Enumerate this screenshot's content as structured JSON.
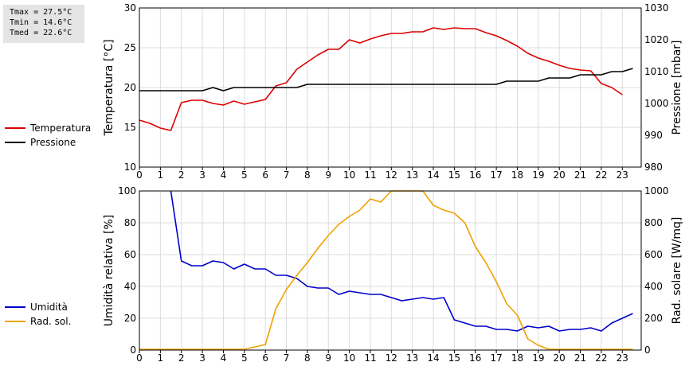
{
  "stats": {
    "tmax": "Tmax = 27.5°C",
    "tmin": "Tmin = 14.6°C",
    "tmed": "Tmed = 22.6°C"
  },
  "legend_top": [
    {
      "label": "Temperatura",
      "color": "#dd0000"
    },
    {
      "label": "Pressione",
      "color": "#000000"
    }
  ],
  "legend_bottom": [
    {
      "label": "Umidità",
      "color": "#0000cc"
    },
    {
      "label": "Rad. sol.",
      "color": "#f0a000"
    }
  ],
  "chart_data": [
    {
      "type": "line",
      "xlabel": "",
      "x_ticks": [
        0,
        1,
        2,
        3,
        4,
        5,
        6,
        7,
        8,
        9,
        10,
        11,
        12,
        13,
        14,
        15,
        16,
        17,
        18,
        19,
        20,
        21,
        22,
        23
      ],
      "xlim": [
        0,
        23.9
      ],
      "y_left": {
        "label": "Temperatura [°C]",
        "lim": [
          10,
          30
        ],
        "ticks": [
          10,
          15,
          20,
          25,
          30
        ]
      },
      "y_right": {
        "label": "Pressione [mbar]",
        "lim": [
          980,
          1030
        ],
        "ticks": [
          980,
          990,
          1000,
          1010,
          1020,
          1030
        ]
      },
      "grid": true,
      "series": [
        {
          "name": "Temperatura",
          "axis": "left",
          "color": "#dd0000",
          "x": [
            0,
            0.5,
            1,
            1.5,
            2,
            2.5,
            3,
            3.5,
            4,
            4.5,
            5,
            5.5,
            6,
            6.5,
            7,
            7.5,
            8,
            8.5,
            9,
            9.5,
            10,
            10.5,
            11,
            11.5,
            12,
            12.5,
            13,
            13.5,
            14,
            14.5,
            15,
            15.5,
            16,
            16.5,
            17,
            17.5,
            18,
            18.5,
            19,
            19.5,
            20,
            20.5,
            21,
            21.5,
            22,
            22.5,
            23,
            23.5
          ],
          "y": [
            15.9,
            15.5,
            14.9,
            14.6,
            18.1,
            18.4,
            18.4,
            18.0,
            17.8,
            18.3,
            17.9,
            18.2,
            18.5,
            20.2,
            20.6,
            22.3,
            23.2,
            24.1,
            24.8,
            24.8,
            26.0,
            25.6,
            26.1,
            26.5,
            26.8,
            26.8,
            27.0,
            27.0,
            27.5,
            27.3,
            27.5,
            27.4,
            27.4,
            26.9,
            26.5,
            25.9,
            25.2,
            24.3,
            23.7,
            23.3,
            22.8,
            22.4,
            22.2,
            22.1,
            20.5,
            20.0,
            19.1,
            null
          ]
        },
        {
          "name": "Pressione",
          "axis": "right",
          "color": "#000000",
          "x": [
            0,
            0.5,
            1,
            1.5,
            2,
            2.5,
            3,
            3.5,
            4,
            4.5,
            5,
            5.5,
            6,
            6.5,
            7,
            7.5,
            8,
            8.5,
            9,
            9.5,
            10,
            10.5,
            11,
            11.5,
            12,
            12.5,
            13,
            13.5,
            14,
            14.5,
            15,
            15.5,
            16,
            16.5,
            17,
            17.5,
            18,
            18.5,
            19,
            19.5,
            20,
            20.5,
            21,
            21.5,
            22,
            22.5,
            23,
            23.5
          ],
          "y": [
            1004,
            1004,
            1004,
            1004,
            1004,
            1004,
            1004,
            1005,
            1004,
            1005,
            1005,
            1005,
            1005,
            1005,
            1005,
            1005,
            1006,
            1006,
            1006,
            1006,
            1006,
            1006,
            1006,
            1006,
            1006,
            1006,
            1006,
            1006,
            1006,
            1006,
            1006,
            1006,
            1006,
            1006,
            1006,
            1007,
            1007,
            1007,
            1007,
            1008,
            1008,
            1008,
            1009,
            1009,
            1009,
            1010,
            1010,
            1011
          ]
        }
      ]
    },
    {
      "type": "line",
      "xlabel": "",
      "x_ticks": [
        0,
        1,
        2,
        3,
        4,
        5,
        6,
        7,
        8,
        9,
        10,
        11,
        12,
        13,
        14,
        15,
        16,
        17,
        18,
        19,
        20,
        21,
        22,
        23
      ],
      "xlim": [
        0,
        23.9
      ],
      "y_left": {
        "label": "Umidità relativa [%]",
        "lim": [
          0,
          100
        ],
        "ticks": [
          0,
          20,
          40,
          60,
          80,
          100
        ]
      },
      "y_right": {
        "label": "Rad. solare [W/mq]",
        "lim": [
          0,
          1000
        ],
        "ticks": [
          0,
          200,
          400,
          600,
          800,
          1000
        ]
      },
      "grid": true,
      "series": [
        {
          "name": "Umidità",
          "axis": "left",
          "color": "#0000cc",
          "x": [
            1.5,
            2,
            2.5,
            3,
            3.5,
            4,
            4.5,
            5,
            5.5,
            6,
            6.5,
            7,
            7.5,
            8,
            8.5,
            9,
            9.5,
            10,
            10.5,
            11,
            11.5,
            12,
            12.5,
            13,
            13.5,
            14,
            14.5,
            15,
            15.5,
            16,
            16.5,
            17,
            17.5,
            18,
            18.5,
            19,
            19.5,
            20,
            20.5,
            21,
            21.5,
            22,
            22.5,
            23,
            23.5
          ],
          "y": [
            100,
            56,
            53,
            53,
            56,
            55,
            51,
            54,
            51,
            51,
            47,
            47,
            45,
            40,
            39,
            39,
            35,
            37,
            36,
            35,
            35,
            33,
            31,
            32,
            33,
            32,
            33,
            19,
            17,
            15,
            15,
            13,
            13,
            12,
            15,
            14,
            15,
            12,
            13,
            13,
            14,
            12,
            17,
            20,
            23
          ]
        },
        {
          "name": "Rad. sol.",
          "axis": "right",
          "color": "#f0a000",
          "x": [
            0,
            1,
            2,
            3,
            4,
            5,
            5.5,
            6,
            6.5,
            7,
            7.5,
            8,
            8.5,
            9,
            9.5,
            10,
            10.5,
            11,
            11.5,
            12,
            12.5,
            13,
            13.5,
            14,
            14.5,
            15,
            15.5,
            16,
            16.5,
            17,
            17.5,
            18,
            18.5,
            19,
            19.5,
            20,
            21,
            22,
            23,
            23.5
          ],
          "y": [
            5,
            5,
            5,
            5,
            5,
            5,
            20,
            35,
            260,
            380,
            470,
            550,
            640,
            720,
            790,
            840,
            880,
            950,
            930,
            1000,
            1030,
            1050,
            1010,
            910,
            880,
            860,
            800,
            650,
            550,
            430,
            290,
            220,
            70,
            30,
            5,
            5,
            5,
            5,
            5,
            5
          ]
        }
      ]
    }
  ]
}
